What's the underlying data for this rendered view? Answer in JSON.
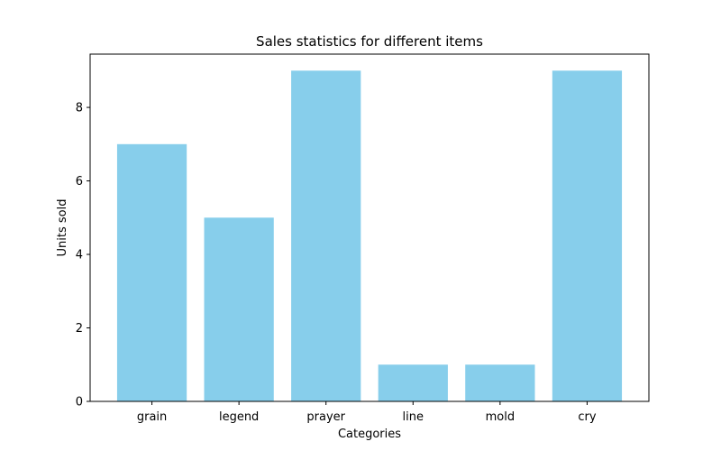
{
  "chart_data": {
    "type": "bar",
    "title": "Sales statistics for different items",
    "xlabel": "Categories",
    "ylabel": "Units sold",
    "categories": [
      "grain",
      "legend",
      "prayer",
      "line",
      "mold",
      "cry"
    ],
    "values": [
      7,
      5,
      9,
      1,
      1,
      9
    ],
    "ylim": [
      0,
      9.45
    ],
    "yticks": [
      0,
      2,
      4,
      6,
      8
    ],
    "grid": false,
    "legend": "none",
    "bar_color": "#87ceeb",
    "axis_color": "#000000"
  }
}
